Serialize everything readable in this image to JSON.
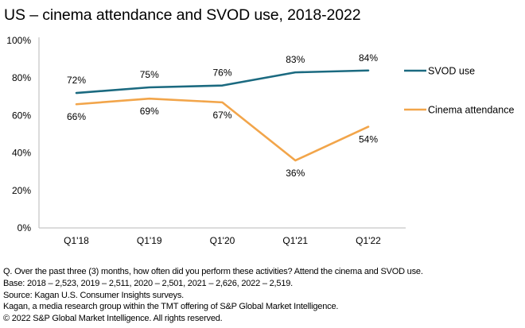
{
  "chart_data": {
    "type": "line",
    "title": "US – cinema attendance and SVOD use, 2018-2022",
    "xlabel": "",
    "ylabel": "",
    "categories": [
      "Q1'18",
      "Q1'19",
      "Q1'20",
      "Q1'21",
      "Q1'22"
    ],
    "y_ticks": [
      "0%",
      "20%",
      "40%",
      "60%",
      "80%",
      "100%"
    ],
    "y_tick_values": [
      0,
      20,
      40,
      60,
      80,
      100
    ],
    "ylim": [
      0,
      100
    ],
    "grid": false,
    "legend_position": "right",
    "series": [
      {
        "name": "SVOD use",
        "color": "#1b6a80",
        "values": [
          72,
          75,
          76,
          83,
          84
        ],
        "labels": [
          "72%",
          "75%",
          "76%",
          "83%",
          "84%"
        ],
        "label_position": "above"
      },
      {
        "name": "Cinema attendance",
        "color": "#f2a54a",
        "values": [
          66,
          69,
          67,
          36,
          54
        ],
        "labels": [
          "66%",
          "69%",
          "67%",
          "36%",
          "54%"
        ],
        "label_position": "below"
      }
    ]
  },
  "footnotes": [
    "Q. Over the past three (3) months, how often did you perform these activities? Attend the cinema and SVOD use.",
    "Base: 2018 – 2,523, 2019 – 2,511, 2020 – 2,501, 2021 – 2,626, 2022 – 2,519.",
    "Source: Kagan U.S. Consumer Insights surveys.",
    "Kagan, a media research group within the TMT offering of S&P Global Market Intelligence.",
    "© 2022 S&P Global Market Intelligence.  All rights reserved."
  ]
}
